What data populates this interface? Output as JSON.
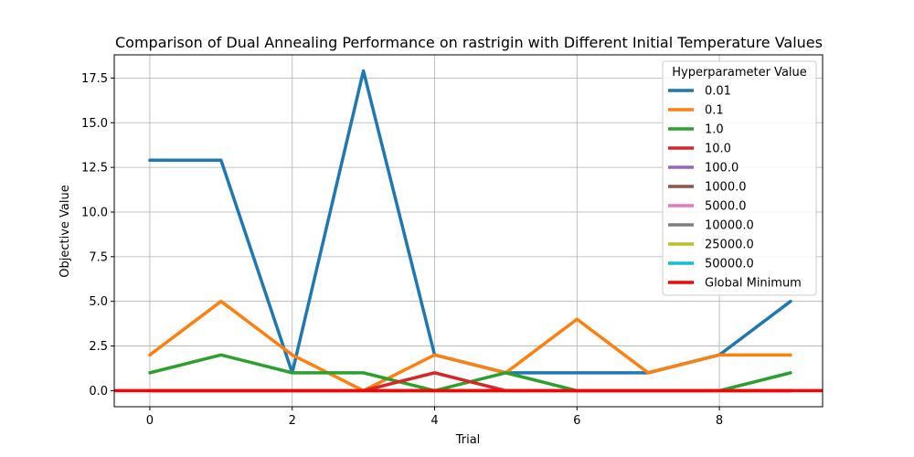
{
  "chart_data": {
    "type": "line",
    "title": "Comparison of Dual Annealing Performance on rastrigin with Different Initial Temperature Values",
    "xlabel": "Trial",
    "ylabel": "Objective Value",
    "xlim": [
      -0.5,
      9.45
    ],
    "ylim": [
      -0.9,
      18.8
    ],
    "xticks": [
      0,
      2,
      4,
      6,
      8
    ],
    "yticks": [
      0.0,
      2.5,
      5.0,
      7.5,
      10.0,
      12.5,
      15.0,
      17.5
    ],
    "ytick_labels": [
      "0.0",
      "2.5",
      "5.0",
      "7.5",
      "10.0",
      "12.5",
      "15.0",
      "17.5"
    ],
    "grid": true,
    "legend": {
      "title": "Hyperparameter Value",
      "placement": "upper right"
    },
    "x": [
      0,
      1,
      2,
      3,
      4,
      5,
      6,
      7,
      8,
      9
    ],
    "series": [
      {
        "name": "0.01",
        "color": "#1f77b4",
        "values": [
          12.9,
          12.9,
          1.0,
          17.9,
          2.0,
          1.0,
          1.0,
          1.0,
          2.0,
          5.0
        ]
      },
      {
        "name": "0.1",
        "color": "#ff7f0e",
        "values": [
          2.0,
          5.0,
          2.0,
          0.0,
          2.0,
          1.0,
          4.0,
          1.0,
          2.0,
          2.0
        ]
      },
      {
        "name": "1.0",
        "color": "#2ca02c",
        "values": [
          1.0,
          2.0,
          1.0,
          1.0,
          0.0,
          1.0,
          0.0,
          0.0,
          0.0,
          1.0
        ]
      },
      {
        "name": "10.0",
        "color": "#d62728",
        "values": [
          0.0,
          0.0,
          0.0,
          0.0,
          1.0,
          0.0,
          0.0,
          0.0,
          0.0,
          0.0
        ]
      },
      {
        "name": "100.0",
        "color": "#9467bd",
        "values": [
          0.0,
          0.0,
          0.0,
          0.0,
          0.0,
          0.0,
          0.0,
          0.0,
          0.0,
          0.0
        ]
      },
      {
        "name": "1000.0",
        "color": "#8c564b",
        "values": [
          0.0,
          0.0,
          0.0,
          0.0,
          0.0,
          0.0,
          0.0,
          0.0,
          0.0,
          0.0
        ]
      },
      {
        "name": "5000.0",
        "color": "#e377c2",
        "values": [
          0.0,
          0.0,
          0.0,
          0.0,
          0.0,
          0.0,
          0.0,
          0.0,
          0.0,
          0.0
        ]
      },
      {
        "name": "10000.0",
        "color": "#7f7f7f",
        "values": [
          0.0,
          0.0,
          0.0,
          0.0,
          0.0,
          0.0,
          0.0,
          0.0,
          0.0,
          0.0
        ]
      },
      {
        "name": "25000.0",
        "color": "#bcbd22",
        "values": [
          0.0,
          0.0,
          0.0,
          0.0,
          0.0,
          0.0,
          0.0,
          0.0,
          0.0,
          0.0
        ]
      },
      {
        "name": "50000.0",
        "color": "#17becf",
        "values": [
          0.0,
          0.0,
          0.0,
          0.0,
          0.0,
          0.0,
          0.0,
          0.0,
          0.0,
          0.0
        ]
      }
    ],
    "reference_line": {
      "name": "Global Minimum",
      "color": "#ff0000",
      "y": 0.0
    }
  }
}
